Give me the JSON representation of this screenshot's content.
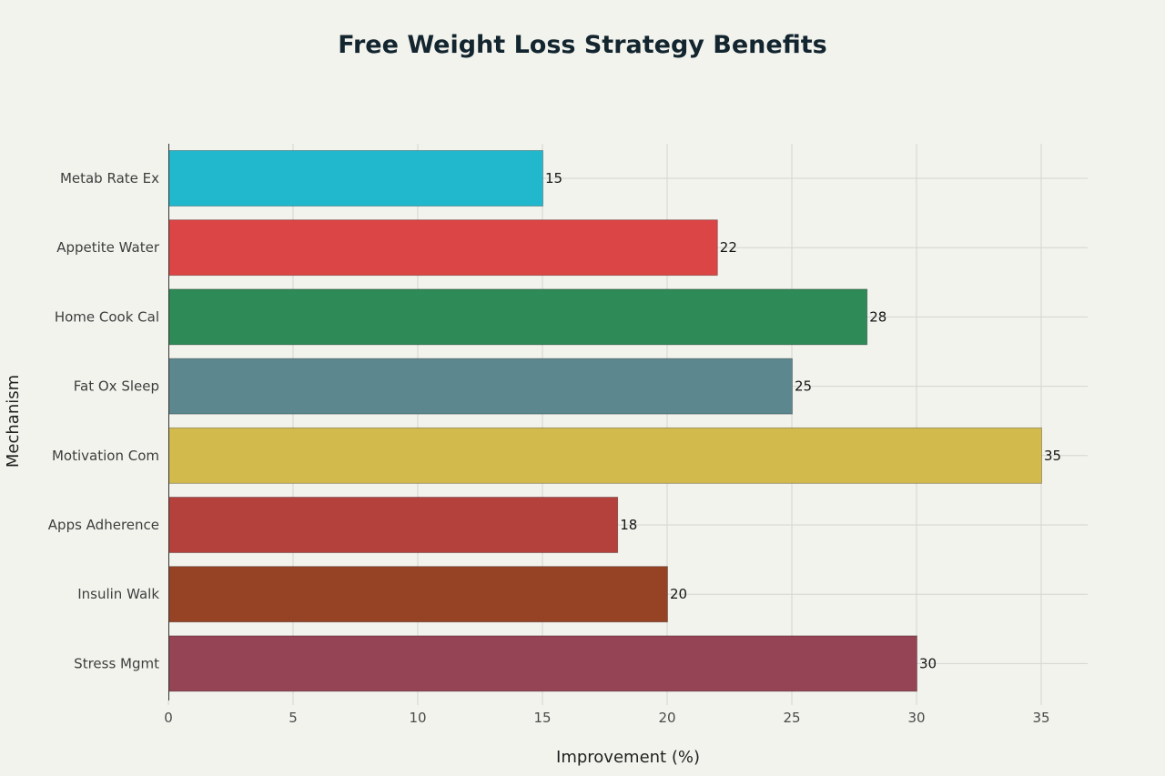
{
  "chart_data": {
    "type": "bar",
    "orientation": "horizontal",
    "title": "Free Weight Loss Strategy Benefits",
    "xlabel": "Improvement (%)",
    "ylabel": "Mechanism",
    "xlim": [
      0,
      37
    ],
    "xticks": [
      0,
      5,
      10,
      15,
      20,
      25,
      30,
      35
    ],
    "grid": true,
    "categories": [
      "Metab Rate Ex",
      "Appetite Water",
      "Home Cook Cal",
      "Fat Ox Sleep",
      "Motivation Com",
      "Apps Adherence",
      "Insulin Walk",
      "Stress Mgmt"
    ],
    "values": [
      15,
      22,
      28,
      25,
      35,
      18,
      20,
      30
    ],
    "data_labels": [
      "15",
      "22",
      "28",
      "25",
      "35",
      "18",
      "20",
      "30"
    ],
    "colors": [
      "#21b8cd",
      "#db4545",
      "#2e8b57",
      "#5d878f",
      "#d2ba4c",
      "#b4413c",
      "#944454",
      "#964325"
    ],
    "bar_colors": [
      "#21b8cd",
      "#db4545",
      "#2e8b57",
      "#5d878f",
      "#d2ba4c",
      "#b4413c",
      "#964325",
      "#944454"
    ]
  }
}
